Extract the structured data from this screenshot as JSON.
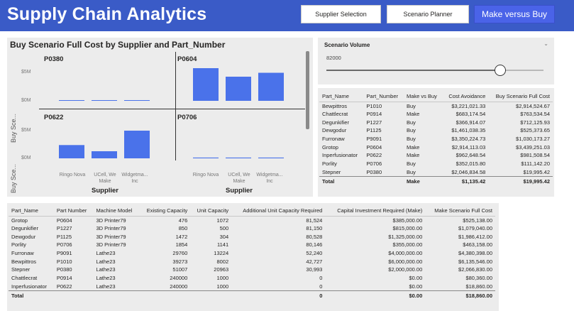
{
  "header": {
    "title": "Supply Chain Analytics",
    "nav": [
      {
        "label": "Supplier Selection",
        "active": false
      },
      {
        "label": "Scenario Planner",
        "active": false
      },
      {
        "label": "Make versus Buy",
        "active": true
      }
    ],
    "bg_color": "#3a5bc7"
  },
  "chart": {
    "title": "Buy Scenario Full Cost by Supplier and Part_Number",
    "y_axis_label": "Buy Sce...",
    "x_axis_label": "Supplier",
    "bar_color": "#4a72ea",
    "ticks": [
      "$5M",
      "$0M"
    ],
    "categories": [
      "Ringo Nova",
      "UCell, We Make",
      "Widgetma... Inc"
    ]
  },
  "chart_data": {
    "type": "bar",
    "title": "Buy Scenario Full Cost by Supplier and Part_Number",
    "xlabel": "Supplier",
    "ylabel": "Buy Sce...",
    "ylim": [
      0,
      6000000
    ],
    "categories": [
      "Ringo Nova",
      "UCell, We Make",
      "Widgetma... Inc"
    ],
    "facets": [
      {
        "name": "P0380",
        "values": [
          19995.42,
          19995.42,
          19995.42
        ]
      },
      {
        "name": "P0604",
        "values": [
          4600000,
          3400000,
          3950000
        ]
      },
      {
        "name": "P0622",
        "values": [
          1870000,
          1000000,
          3900000
        ]
      },
      {
        "name": "P0706",
        "values": [
          111142.2,
          111142.2,
          111142.2
        ]
      }
    ]
  },
  "slicer": {
    "title": "Scenario Volume",
    "value": "82000",
    "level": 0.8
  },
  "table1": {
    "columns": [
      "Part_Name",
      "Part_Number",
      "Make vs Buy",
      "Cost Avoidance",
      "Buy Scenario Full Cost"
    ],
    "rows": [
      [
        "Bewpittros",
        "P1010",
        "Buy",
        "$3,221,021.33",
        "$2,914,524.67"
      ],
      [
        "Chattlecrat",
        "P0914",
        "Make",
        "$683,174.54",
        "$763,534.54"
      ],
      [
        "Degunkifier",
        "P1227",
        "Buy",
        "$366,914.07",
        "$712,125.93"
      ],
      [
        "Dewgodur",
        "P1125",
        "Buy",
        "$1,461,038.35",
        "$525,373.65"
      ],
      [
        "Furronaw",
        "P9091",
        "Buy",
        "$3,350,224.73",
        "$1,030,173.27"
      ],
      [
        "Grotop",
        "P0604",
        "Make",
        "$2,914,113.03",
        "$3,439,251.03"
      ],
      [
        "Inperfusionator",
        "P0622",
        "Make",
        "$962,648.54",
        "$981,508.54"
      ],
      [
        "Porlity",
        "P0706",
        "Buy",
        "$352,015.80",
        "$111,142.20"
      ],
      [
        "Stepner",
        "P0380",
        "Buy",
        "$2,046,834.58",
        "$19,995.42"
      ]
    ],
    "total": [
      "Total",
      "",
      "Make",
      "$1,135.42",
      "$19,995.42"
    ]
  },
  "table2": {
    "columns": [
      "Part_Name",
      "Part Number",
      "Machine Model",
      "Existing Capacity",
      "Unit Capacity",
      "Additional Unit Capacity Required",
      "Capital Investment Required (Make)",
      "Make Scenario Full Cost"
    ],
    "rows": [
      [
        "Grotop",
        "P0604",
        "3D Printer79",
        "476",
        "1072",
        "81,524",
        "$385,000.00",
        "$525,138.00"
      ],
      [
        "Degunkifier",
        "P1227",
        "3D Printer79",
        "850",
        "500",
        "81,150",
        "$815,000.00",
        "$1,079,040.00"
      ],
      [
        "Dewgodur",
        "P1125",
        "3D Printer79",
        "1472",
        "304",
        "80,528",
        "$1,325,000.00",
        "$1,986,412.00"
      ],
      [
        "Porlity",
        "P0706",
        "3D Printer79",
        "1854",
        "1141",
        "80,146",
        "$355,000.00",
        "$463,158.00"
      ],
      [
        "Furronaw",
        "P9091",
        "Lathe23",
        "29760",
        "13224",
        "52,240",
        "$4,000,000.00",
        "$4,380,398.00"
      ],
      [
        "Bewpittros",
        "P1010",
        "Lathe23",
        "39273",
        "8002",
        "42,727",
        "$6,000,000.00",
        "$6,135,546.00"
      ],
      [
        "Stepner",
        "P0380",
        "Lathe23",
        "51007",
        "20963",
        "30,993",
        "$2,000,000.00",
        "$2,066,830.00"
      ],
      [
        "Chattlecrat",
        "P0914",
        "Lathe23",
        "240000",
        "1000",
        "0",
        "$0.00",
        "$80,360.00"
      ],
      [
        "Inperfusionator",
        "P0622",
        "Lathe23",
        "240000",
        "1000",
        "0",
        "$0.00",
        "$18,860.00"
      ]
    ],
    "total": [
      "Total",
      "",
      "",
      "",
      "",
      "0",
      "$0.00",
      "$18,860.00"
    ]
  }
}
